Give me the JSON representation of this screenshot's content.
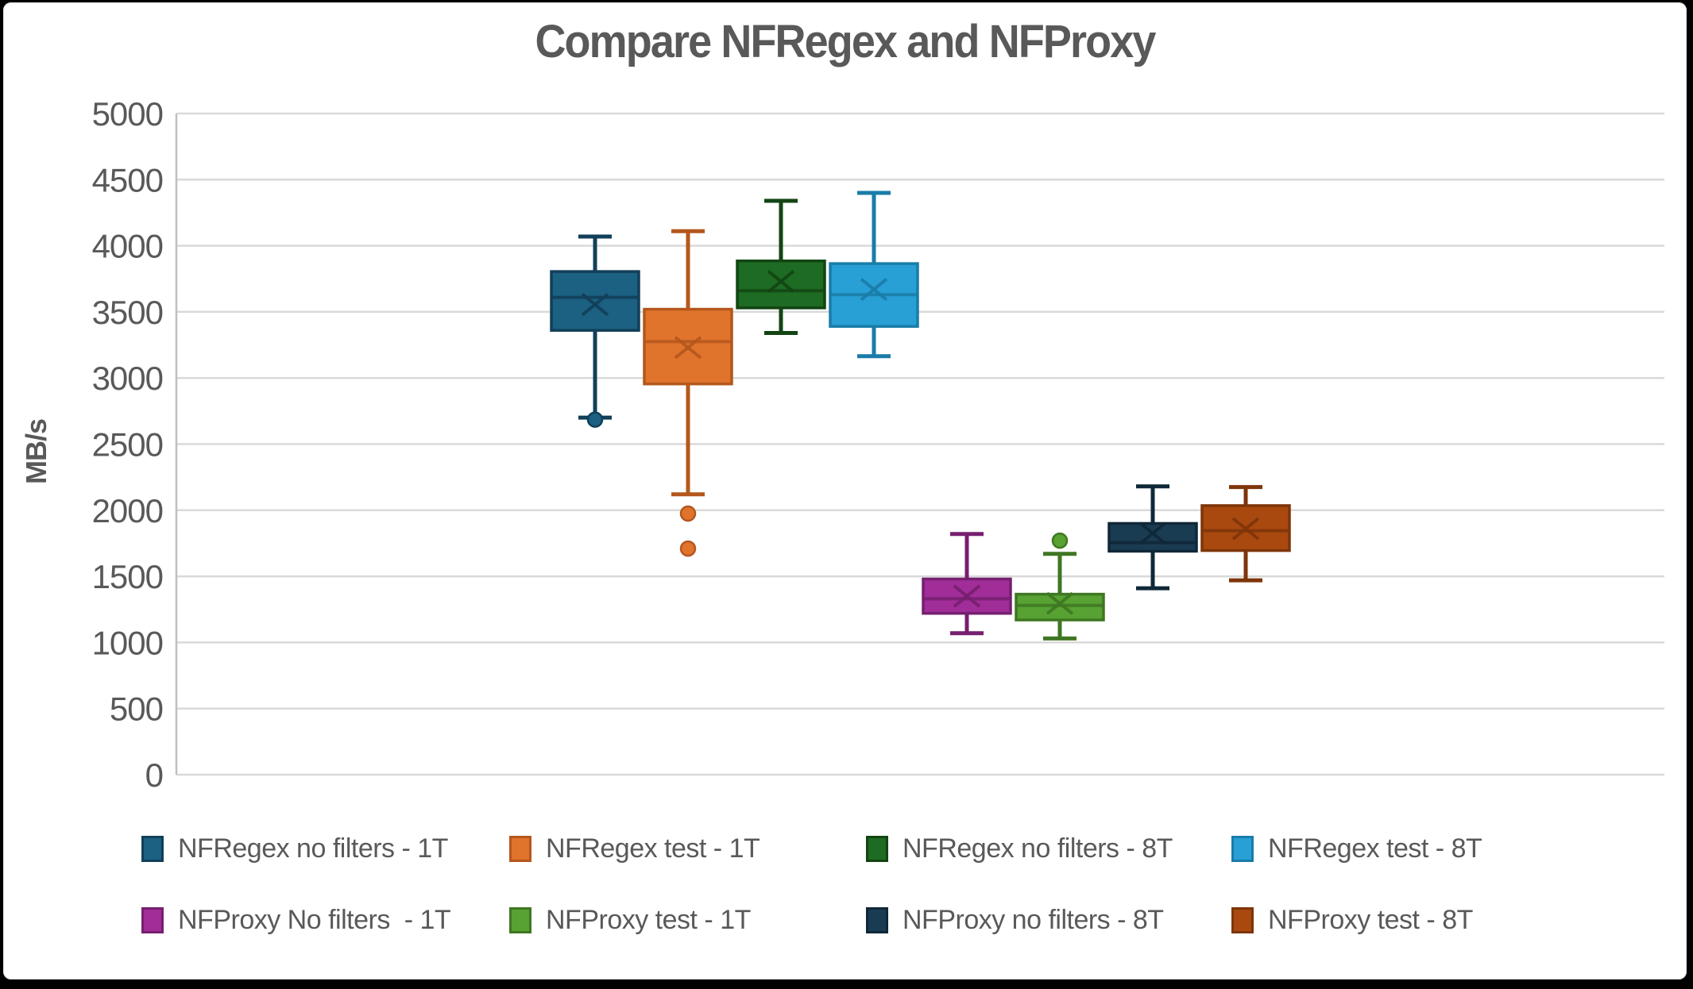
{
  "title": "Compare NFRegex and NFProxy",
  "ylabel": "MB/s",
  "chart_data": {
    "type": "boxplot",
    "title": "Compare NFRegex and NFProxy",
    "xlabel": "",
    "ylabel": "MB/s",
    "ylim": [
      0,
      5000
    ],
    "y_ticks": [
      0,
      500,
      1000,
      1500,
      2000,
      2500,
      3000,
      3500,
      4000,
      4500,
      5000
    ],
    "grid": "horizontal",
    "legend_position": "bottom",
    "series": [
      {
        "name": "NFRegex no filters - 1T",
        "color": "#1C6082",
        "border": "#123F58",
        "whisker_low": 2700,
        "q1": 3360,
        "median": 3610,
        "mean": 3555,
        "q3": 3805,
        "whisker_high": 4070,
        "outliers": [
          2685
        ]
      },
      {
        "name": "NFRegex test - 1T",
        "color": "#E0742D",
        "border": "#B4571D",
        "whisker_low": 2120,
        "q1": 2955,
        "median": 3275,
        "mean": 3230,
        "q3": 3520,
        "whisker_high": 4110,
        "outliers": [
          1975,
          1710
        ]
      },
      {
        "name": "NFRegex no filters - 8T",
        "color": "#1E6B23",
        "border": "#124513",
        "whisker_low": 3340,
        "q1": 3530,
        "median": 3660,
        "mean": 3730,
        "q3": 3885,
        "whisker_high": 4340,
        "outliers": []
      },
      {
        "name": "NFRegex test - 8T",
        "color": "#28A0D6",
        "border": "#1A7CA8",
        "whisker_low": 3165,
        "q1": 3390,
        "median": 3630,
        "mean": 3670,
        "q3": 3865,
        "whisker_high": 4400,
        "outliers": []
      },
      {
        "name": "NFProxy No filters  - 1T",
        "color": "#A12D98",
        "border": "#761F70",
        "whisker_low": 1070,
        "q1": 1220,
        "median": 1330,
        "mean": 1350,
        "q3": 1480,
        "whisker_high": 1820,
        "outliers": []
      },
      {
        "name": "NFProxy test - 1T",
        "color": "#57A233",
        "border": "#3F7722",
        "whisker_low": 1030,
        "q1": 1170,
        "median": 1280,
        "mean": 1295,
        "q3": 1365,
        "whisker_high": 1670,
        "outliers": [
          1770
        ]
      },
      {
        "name": "NFProxy no filters - 8T",
        "color": "#1A3C52",
        "border": "#0F2838",
        "whisker_low": 1410,
        "q1": 1690,
        "median": 1755,
        "mean": 1825,
        "q3": 1900,
        "whisker_high": 2180,
        "outliers": []
      },
      {
        "name": "NFProxy test - 8T",
        "color": "#A9490F",
        "border": "#7E3509",
        "whisker_low": 1470,
        "q1": 1695,
        "median": 1845,
        "mean": 1860,
        "q3": 2035,
        "whisker_high": 2175,
        "outliers": []
      }
    ],
    "style": {
      "gridline_color": "#D9D9D9",
      "axis_line_color": "#C0C0C0",
      "text_color": "#595959"
    }
  }
}
